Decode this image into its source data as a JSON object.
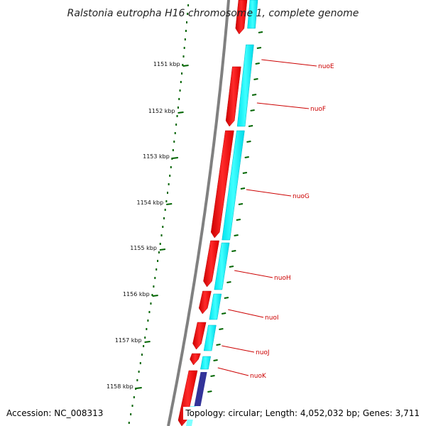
{
  "title": "Ralstonia eutropha H16 chromosome 1, complete genome",
  "accession": "Accession: NC_008313",
  "topology": "Topology: circular; Length: 4,052,032 bp; Genes: 3,711",
  "colors": {
    "backbone": "#808080",
    "forward_gene": "#ff0000",
    "reverse_gene": "#00ffff",
    "other_gene": "#333399",
    "tick": "#006400",
    "label_line": "#cc0000"
  },
  "kbp_ticks": [
    "1151 kbp",
    "1152 kbp",
    "1153 kbp",
    "1154 kbp",
    "1155 kbp",
    "1156 kbp",
    "1157 kbp",
    "1158 kbp"
  ],
  "genes": [
    {
      "label": "nuoE",
      "strand": "reverse"
    },
    {
      "label": "nuoF",
      "strand": "reverse"
    },
    {
      "label": "nuoG",
      "strand": "reverse"
    },
    {
      "label": "nuoH",
      "strand": "reverse"
    },
    {
      "label": "nuoI",
      "strand": "reverse"
    },
    {
      "label": "nuoJ",
      "strand": "reverse"
    },
    {
      "label": "nuoK",
      "strand": "reverse"
    }
  ]
}
